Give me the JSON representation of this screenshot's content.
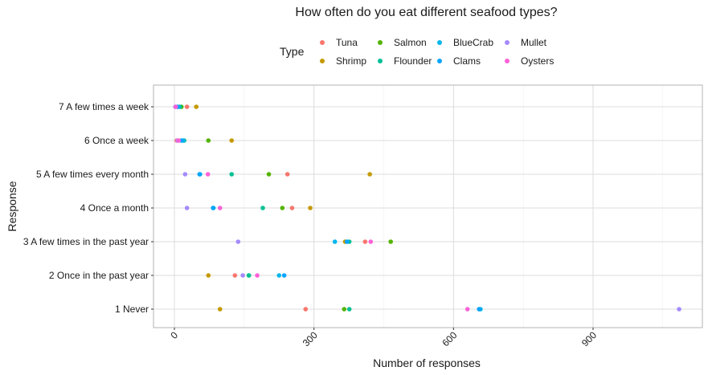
{
  "chart_data": {
    "type": "scatter",
    "title": "How often do you eat different seafood types?",
    "xlabel": "Number of responses",
    "ylabel": "Response",
    "xlim": [
      -45,
      1135
    ],
    "x_ticks": [
      0,
      300,
      600,
      900
    ],
    "x_tick_labels": [
      "0",
      "300",
      "600",
      "900"
    ],
    "categories": [
      "1 Never",
      "2 Once in the past year",
      "3 A few times in the past year",
      "4 Once a month",
      "5 A few times every month",
      "6 Once a week",
      "7 A few times a week"
    ],
    "legend_title": "Type",
    "legend_position": "top",
    "grid": true,
    "series": [
      {
        "name": "Tuna",
        "color": "#F8766D",
        "values": [
          282,
          130,
          410,
          253,
          243,
          5,
          27
        ]
      },
      {
        "name": "Shrimp",
        "color": "#C49A00",
        "values": [
          98,
          73,
          367,
          292,
          420,
          123,
          47
        ]
      },
      {
        "name": "Salmon",
        "color": "#53B400",
        "values": [
          365,
          160,
          465,
          232,
          203,
          73,
          15
        ]
      },
      {
        "name": "Flounder",
        "color": "#00C094",
        "values": [
          376,
          160,
          376,
          190,
          123,
          21,
          12
        ]
      },
      {
        "name": "BlueCrab",
        "color": "#00B6EB",
        "values": [
          658,
          225,
          345,
          84,
          55,
          19,
          8
        ]
      },
      {
        "name": "Clams",
        "color": "#06A4FF",
        "values": [
          655,
          236,
          371,
          83,
          54,
          15,
          6
        ]
      },
      {
        "name": "Mullet",
        "color": "#A58AFF",
        "values": [
          1085,
          147,
          137,
          27,
          23,
          7,
          2
        ]
      },
      {
        "name": "Oysters",
        "color": "#FB61D7",
        "values": [
          630,
          178,
          422,
          98,
          72,
          9,
          3
        ]
      }
    ]
  }
}
